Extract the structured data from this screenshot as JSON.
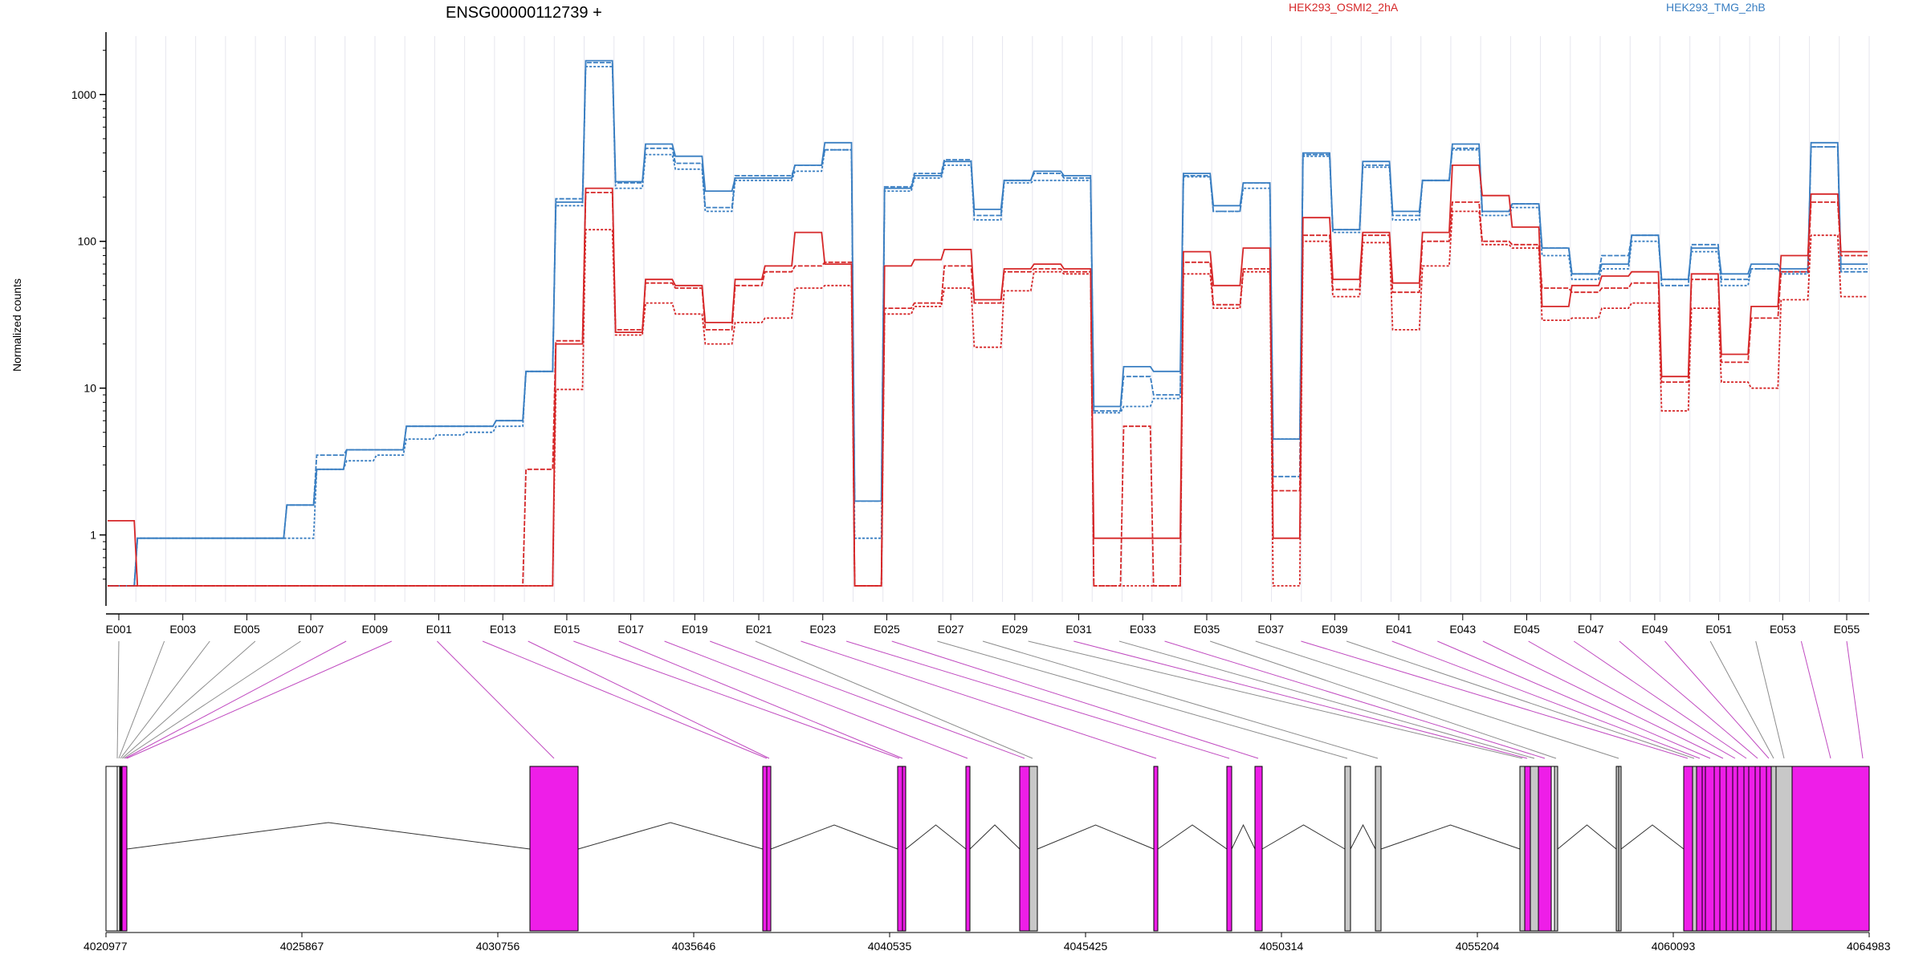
{
  "chart_data": {
    "type": "line",
    "title": "ENSG00000112739 +",
    "ylabel": "Normalized counts",
    "yscale": "log",
    "ylim": [
      0.35,
      2500
    ],
    "y_ticks": [
      1,
      10,
      100,
      1000
    ],
    "y_tick_labels": [
      "1",
      "10",
      "100",
      "1000"
    ],
    "legend": [
      {
        "name": "HEK293_OSMI2_2hA",
        "color": "#d62728",
        "placement": "top-center"
      },
      {
        "name": "HEK293_TMG_2hB",
        "color": "#3a7fc2",
        "placement": "top-right"
      }
    ],
    "exon_labels": [
      "E001",
      "E003",
      "E005",
      "E007",
      "E009",
      "E011",
      "E013",
      "E015",
      "E017",
      "E019",
      "E021",
      "E023",
      "E025",
      "E027",
      "E029",
      "E031",
      "E033",
      "E035",
      "E037",
      "E039",
      "E041",
      "E043",
      "E045",
      "E047",
      "E049",
      "E051",
      "E053",
      "E055"
    ],
    "series": [
      {
        "name": "HEK293_TMG_2hB",
        "color": "#3a7fc2",
        "values": [
          0.45,
          0.95,
          0.95,
          0.95,
          0.95,
          0.95,
          1.6,
          2.8,
          3.8,
          3.8,
          5.5,
          5.5,
          5.5,
          6.0,
          13,
          185,
          1700,
          255,
          460,
          380,
          220,
          270,
          270,
          330,
          470,
          1.7,
          230,
          280,
          350,
          165,
          260,
          300,
          280,
          7.5,
          14,
          13,
          290,
          175,
          250,
          4.5,
          400,
          120,
          350,
          160,
          260,
          460,
          160,
          180,
          90,
          60,
          70,
          110,
          55,
          90,
          60,
          70,
          65,
          470,
          70
        ]
      },
      {
        "name": "HEK293_TMG_2hB",
        "color": "#3a7fc2",
        "values": [
          0.45,
          0.95,
          0.95,
          0.95,
          0.95,
          0.95,
          1.6,
          3.5,
          3.8,
          3.8,
          5.5,
          5.5,
          5.5,
          6.0,
          13,
          195,
          1650,
          250,
          430,
          340,
          170,
          280,
          280,
          330,
          420,
          1.7,
          235,
          290,
          360,
          150,
          260,
          290,
          270,
          7.0,
          12,
          9,
          280,
          160,
          250,
          2.5,
          390,
          120,
          330,
          150,
          260,
          430,
          160,
          180,
          90,
          60,
          80,
          110,
          50,
          95,
          55,
          65,
          62,
          440,
          62
        ]
      },
      {
        "name": "HEK293_TMG_2hB",
        "color": "#3a7fc2",
        "values": [
          0.45,
          0.95,
          0.95,
          0.95,
          0.95,
          0.95,
          0.95,
          2.8,
          3.2,
          3.5,
          4.5,
          4.8,
          5.0,
          5.5,
          13,
          175,
          1550,
          230,
          390,
          310,
          160,
          260,
          260,
          300,
          420,
          0.95,
          220,
          270,
          330,
          140,
          250,
          260,
          260,
          6.8,
          7.5,
          8.5,
          275,
          160,
          230,
          4.5,
          380,
          115,
          320,
          140,
          260,
          420,
          150,
          170,
          80,
          55,
          65,
          100,
          55,
          85,
          50,
          65,
          60,
          440,
          65
        ]
      },
      {
        "name": "HEK293_OSMI2_2hA",
        "color": "#d62728",
        "values": [
          1.25,
          0.45,
          0.45,
          0.45,
          0.45,
          0.45,
          0.45,
          0.45,
          0.45,
          0.45,
          0.45,
          0.45,
          0.45,
          0.45,
          0.45,
          20,
          230,
          24,
          55,
          50,
          28,
          55,
          68,
          115,
          70,
          0.45,
          68,
          75,
          88,
          40,
          65,
          70,
          65,
          0.95,
          0.95,
          0.95,
          85,
          50,
          90,
          0.95,
          145,
          55,
          115,
          52,
          115,
          330,
          205,
          125,
          36,
          50,
          58,
          62,
          12,
          60,
          17,
          36,
          80,
          210,
          85
        ]
      },
      {
        "name": "HEK293_OSMI2_2hA",
        "color": "#d62728",
        "values": [
          0.45,
          0.45,
          0.45,
          0.45,
          0.45,
          0.45,
          0.45,
          0.45,
          0.45,
          0.45,
          0.45,
          0.45,
          0.45,
          0.45,
          2.8,
          21,
          215,
          25,
          52,
          48,
          25,
          50,
          62,
          68,
          72,
          0.45,
          35,
          38,
          68,
          38,
          62,
          65,
          62,
          0.45,
          5.5,
          0.45,
          72,
          37,
          65,
          2.0,
          110,
          47,
          110,
          45,
          100,
          185,
          100,
          95,
          48,
          45,
          48,
          52,
          11,
          55,
          15,
          30,
          62,
          185,
          80
        ]
      },
      {
        "name": "HEK293_OSMI2_2hA",
        "color": "#d62728",
        "values": [
          0.45,
          0.45,
          0.45,
          0.45,
          0.45,
          0.45,
          0.45,
          0.45,
          0.45,
          0.45,
          0.45,
          0.45,
          0.45,
          0.45,
          0.45,
          9.8,
          120,
          23,
          38,
          32,
          20,
          28,
          30,
          48,
          50,
          0.45,
          32,
          36,
          48,
          19,
          46,
          62,
          60,
          0.45,
          0.45,
          0.45,
          60,
          35,
          62,
          0.45,
          100,
          42,
          98,
          25,
          68,
          160,
          95,
          90,
          29,
          30,
          35,
          38,
          7.0,
          35,
          11,
          10,
          40,
          110,
          42
        ]
      }
    ],
    "gene_model": {
      "coordinate_labels": [
        "4020977",
        "4025867",
        "4030756",
        "4035646",
        "4040535",
        "4045425",
        "4050314",
        "4055204",
        "4060093",
        "4064983"
      ],
      "range": [
        4020977,
        4064983
      ]
    }
  }
}
